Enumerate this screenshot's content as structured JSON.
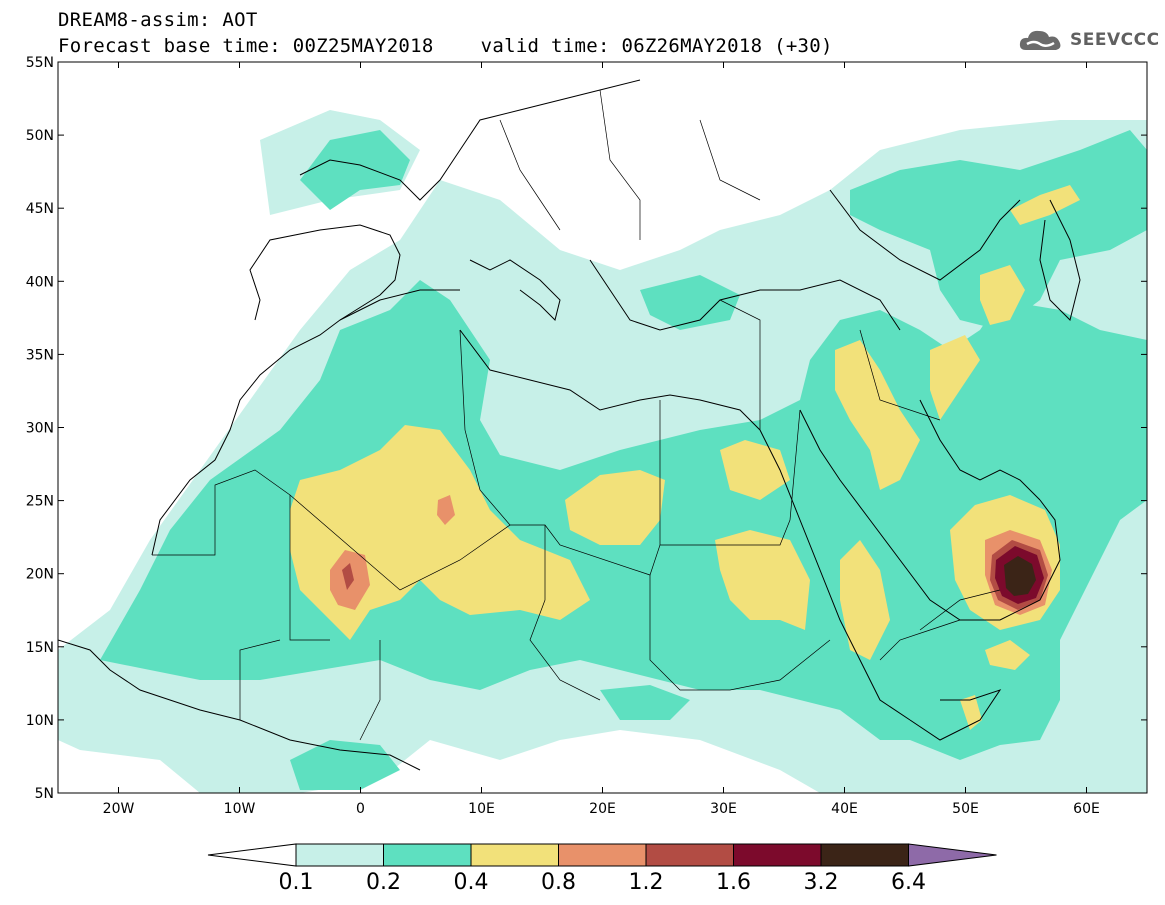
{
  "header": {
    "line1": "DREAM8-assim: AOT",
    "line2": "Forecast base time: 00Z25MAY2018    valid time: 06Z26MAY2018 (+30)"
  },
  "logo": {
    "text": "SEEVCCC",
    "icon": "cloud-logo-icon"
  },
  "map": {
    "lon_range": [
      -25,
      65
    ],
    "lat_range": [
      5,
      55
    ],
    "lat_labels": [
      "55N",
      "50N",
      "45N",
      "40N",
      "35N",
      "30N",
      "25N",
      "20N",
      "15N",
      "10N",
      "5N"
    ],
    "lon_labels": [
      "20W",
      "10W",
      "0",
      "10E",
      "20E",
      "30E",
      "40E",
      "50E",
      "60E"
    ],
    "field": "Aerosol optical thickness (dust)",
    "max_region": "southern Arabian Peninsula near 19.5N 54E"
  },
  "colorbar": {
    "levels": [
      "0.1",
      "0.2",
      "0.4",
      "0.8",
      "1.2",
      "1.6",
      "3.2",
      "6.4"
    ],
    "colors": [
      "#c7f0e8",
      "#5ee0c0",
      "#f2e17a",
      "#e8916a",
      "#b24c44",
      "#7c0a2c",
      "#3b2417",
      "#8e6aa8"
    ]
  }
}
